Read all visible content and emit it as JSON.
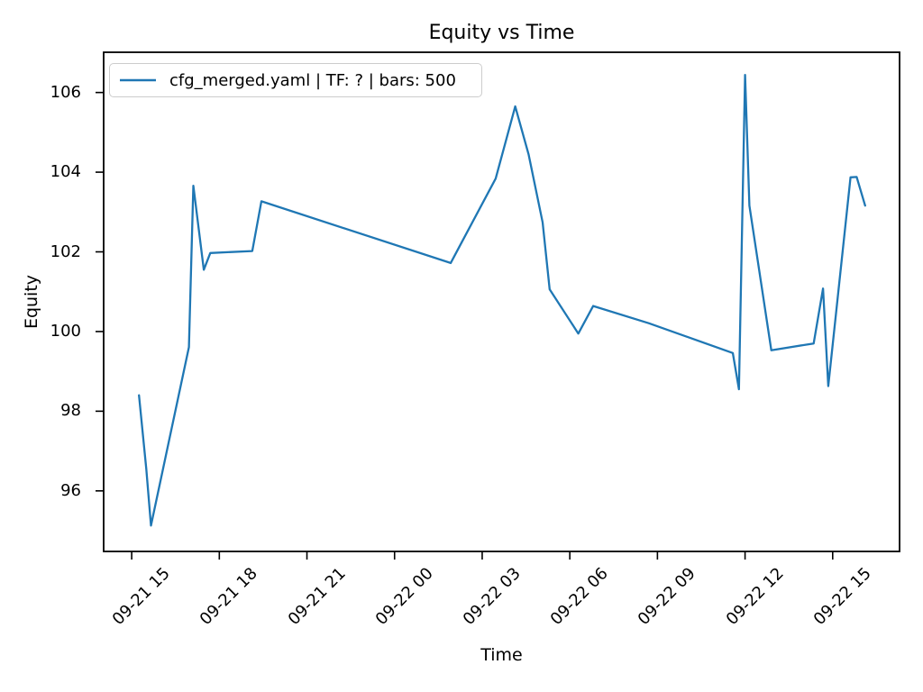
{
  "figure": {
    "title": "Equity vs Time",
    "xlabel": "Time",
    "ylabel": "Equity"
  },
  "legend": {
    "label": "cfg_merged.yaml | TF: ? | bars: 500",
    "position": "upper left"
  },
  "chart_data": {
    "type": "line",
    "title": "Equity vs Time",
    "xlabel": "Time",
    "ylabel": "Equity",
    "grid": false,
    "legend_position": "upper left",
    "accent_color": "#1f77b4",
    "x_unit": "hours after 09-21 15:00",
    "xlim": [
      -0.96,
      26.29
    ],
    "ylim": [
      94.48,
      107.01
    ],
    "x_ticks": [
      {
        "pos": 0,
        "label": "09-21 15"
      },
      {
        "pos": 3,
        "label": "09-21 18"
      },
      {
        "pos": 6,
        "label": "09-21 21"
      },
      {
        "pos": 9,
        "label": "09-22 00"
      },
      {
        "pos": 12,
        "label": "09-22 03"
      },
      {
        "pos": 15,
        "label": "09-22 06"
      },
      {
        "pos": 18,
        "label": "09-22 09"
      },
      {
        "pos": 21,
        "label": "09-22 12"
      },
      {
        "pos": 24,
        "label": "09-22 15"
      }
    ],
    "y_ticks": [
      {
        "pos": 96,
        "label": "96"
      },
      {
        "pos": 98,
        "label": "98"
      },
      {
        "pos": 100,
        "label": "100"
      },
      {
        "pos": 102,
        "label": "102"
      },
      {
        "pos": 104,
        "label": "104"
      },
      {
        "pos": 106,
        "label": "106"
      }
    ],
    "series": [
      {
        "name": "cfg_merged.yaml | TF: ? | bars: 500",
        "color": "#1f77b4",
        "points": [
          [
            0.25,
            98.4
          ],
          [
            0.5,
            96.55
          ],
          [
            0.66,
            95.13
          ],
          [
            1.96,
            99.61
          ],
          [
            2.11,
            103.66
          ],
          [
            2.47,
            101.55
          ],
          [
            2.69,
            101.97
          ],
          [
            4.13,
            102.02
          ],
          [
            4.44,
            103.27
          ],
          [
            10.92,
            101.72
          ],
          [
            12.46,
            103.84
          ],
          [
            13.13,
            105.65
          ],
          [
            13.59,
            104.44
          ],
          [
            14.07,
            102.74
          ],
          [
            14.31,
            101.06
          ],
          [
            15.29,
            99.95
          ],
          [
            15.8,
            100.64
          ],
          [
            17.7,
            100.21
          ],
          [
            20.58,
            99.46
          ],
          [
            20.79,
            98.55
          ],
          [
            21.0,
            106.44
          ],
          [
            21.15,
            103.16
          ],
          [
            21.9,
            99.53
          ],
          [
            23.35,
            99.7
          ],
          [
            23.67,
            101.08
          ],
          [
            23.85,
            98.63
          ],
          [
            24.61,
            103.87
          ],
          [
            24.82,
            103.88
          ],
          [
            25.11,
            103.16
          ]
        ]
      }
    ]
  }
}
